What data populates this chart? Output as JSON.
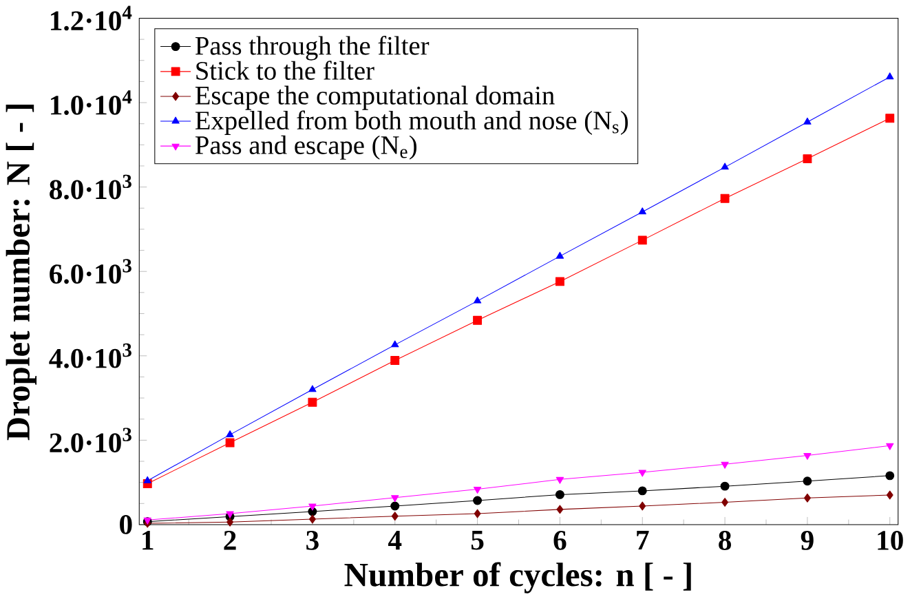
{
  "chart_data": {
    "type": "line",
    "xlabel": "Number of cycles: n [ - ]",
    "ylabel": "Droplet number: N [ - ]",
    "x": [
      1,
      2,
      3,
      4,
      5,
      6,
      7,
      8,
      9,
      10
    ],
    "series": [
      {
        "name": "Pass through the filter",
        "color": "#000000",
        "marker": "circle",
        "values": [
          70,
          190,
          310,
          440,
          570,
          710,
          800,
          910,
          1030,
          1160
        ]
      },
      {
        "name": "Stick to the filter",
        "color": "#ff0000",
        "marker": "square",
        "values": [
          970,
          1940,
          2900,
          3890,
          4840,
          5760,
          6740,
          7730,
          8670,
          9630
        ]
      },
      {
        "name": "Escape the computational domain",
        "color": "#800000",
        "marker": "diamond",
        "values": [
          30,
          60,
          130,
          200,
          260,
          360,
          440,
          530,
          630,
          700
        ]
      },
      {
        "name": "Expelled from both mouth and nose (N$_{s}$)",
        "color": "#0000ff",
        "marker": "triangle",
        "values": [
          1040,
          2130,
          3200,
          4260,
          5300,
          6360,
          7410,
          8470,
          9540,
          10610
        ]
      },
      {
        "name": "Pass and escape (N$_{e}$)",
        "color": "#ff00ff",
        "marker": "triangle-down",
        "values": [
          110,
          260,
          440,
          640,
          840,
          1070,
          1240,
          1430,
          1640,
          1870
        ]
      }
    ],
    "xlim": [
      0.9,
      10.1
    ],
    "xticks": [
      1,
      2,
      3,
      4,
      5,
      6,
      7,
      8,
      9,
      10
    ],
    "ylim": [
      0,
      12000
    ],
    "yticks": [
      {
        "value": 0,
        "label": "0"
      },
      {
        "value": 2000,
        "label": "2.0·10$^{3}$"
      },
      {
        "value": 4000,
        "label": "4.0·10$^{3}$"
      },
      {
        "value": 6000,
        "label": "6.0·10$^{3}$"
      },
      {
        "value": 8000,
        "label": "8.0·10$^{3}$"
      },
      {
        "value": 10000,
        "label": "1.0·10$^{4}$"
      },
      {
        "value": 12000,
        "label": "1.2·10$^{4}$"
      }
    ],
    "grid": false,
    "legend": "top left",
    "line_style": "solid"
  }
}
